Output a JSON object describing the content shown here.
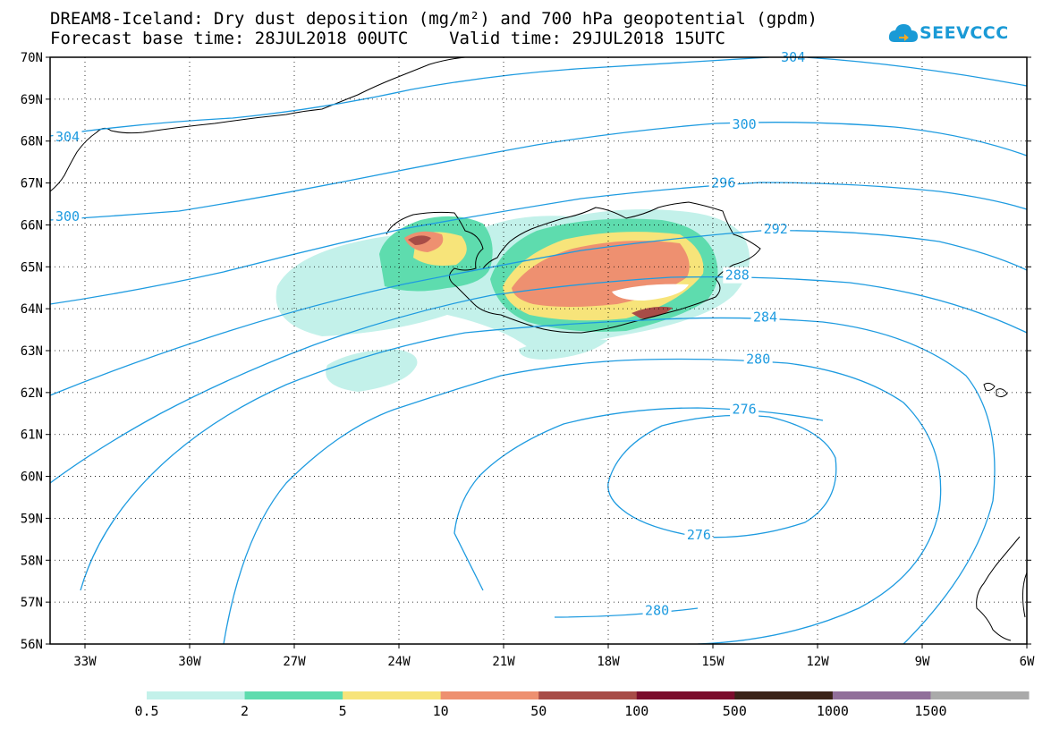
{
  "title": {
    "line1": "DREAM8-Iceland: Dry dust deposition (mg/m²) and 700 hPa geopotential (gpdm)",
    "line2": "Forecast base time: 28JUL2018 00UTC    Valid time: 29JUL2018 15UTC"
  },
  "logo": {
    "text": "SEEVCCC",
    "icon": "cloud-icon",
    "color": "#1a9ad6"
  },
  "map": {
    "lon_range": [
      -34.0,
      -6.0
    ],
    "lat_range": [
      56,
      70
    ],
    "lat_labels": [
      "70N",
      "69N",
      "68N",
      "67N",
      "66N",
      "65N",
      "64N",
      "63N",
      "62N",
      "61N",
      "60N",
      "59N",
      "58N",
      "57N",
      "56N"
    ],
    "lon_labels": [
      "33W",
      "30W",
      "27W",
      "24W",
      "21W",
      "18W",
      "15W",
      "12W",
      "9W",
      "6W"
    ],
    "lon_values": [
      -33,
      -30,
      -27,
      -24,
      -21,
      -18,
      -15,
      -12,
      -9,
      -6
    ],
    "contour_labels": [
      {
        "text": "304",
        "lon": -33.5,
        "lat": 68.1
      },
      {
        "text": "304",
        "lon": -12.7,
        "lat": 70.0
      },
      {
        "text": "300",
        "lon": -33.5,
        "lat": 66.2
      },
      {
        "text": "300",
        "lon": -14.1,
        "lat": 68.4
      },
      {
        "text": "296",
        "lon": -14.7,
        "lat": 67.0
      },
      {
        "text": "292",
        "lon": -13.2,
        "lat": 65.9
      },
      {
        "text": "288",
        "lon": -14.3,
        "lat": 64.8
      },
      {
        "text": "284",
        "lon": -13.5,
        "lat": 63.8
      },
      {
        "text": "280",
        "lon": -13.7,
        "lat": 62.8
      },
      {
        "text": "280",
        "lon": -16.6,
        "lat": 56.8
      },
      {
        "text": "276",
        "lon": -14.1,
        "lat": 61.6
      },
      {
        "text": "276",
        "lon": -15.4,
        "lat": 58.6
      }
    ],
    "contour_color": "#1e9be0"
  },
  "legend": {
    "labels": [
      "0.5",
      "2",
      "5",
      "10",
      "50",
      "100",
      "500",
      "1000",
      "1500"
    ],
    "colors": [
      "#c3f1ea",
      "#5edcae",
      "#f7e47a",
      "#ee9070",
      "#a84c47",
      "#7b0d2c",
      "#3b2318",
      "#916f9a",
      "#aaaaaa"
    ]
  }
}
